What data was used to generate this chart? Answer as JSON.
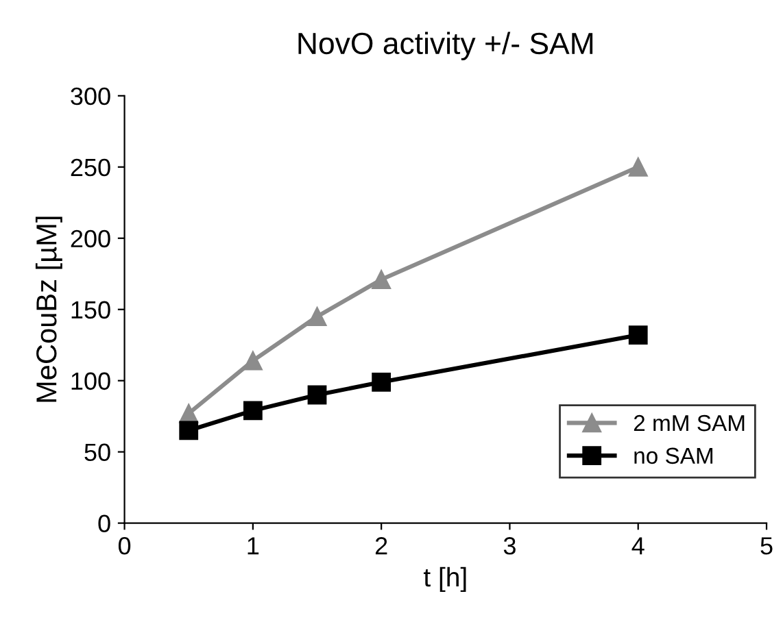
{
  "chart_data": {
    "type": "line",
    "title": "NovO activity +/- SAM",
    "xlabel": "t [h]",
    "ylabel": "MeCouBz [µM]",
    "x": [
      0.5,
      1,
      1.5,
      2,
      4
    ],
    "series": [
      {
        "name": "2 mM SAM",
        "color": "#8c8c8c",
        "marker": "triangle",
        "values": [
          77,
          114,
          145,
          171,
          250
        ]
      },
      {
        "name": "no SAM",
        "color": "#000000",
        "marker": "square",
        "values": [
          65,
          79,
          90,
          99,
          132
        ]
      }
    ],
    "xlim": [
      0,
      5
    ],
    "xticks": [
      0,
      1,
      2,
      3,
      4,
      5
    ],
    "ylim": [
      0,
      300
    ],
    "yticks": [
      0,
      50,
      100,
      150,
      200,
      250,
      300
    ],
    "grid": false,
    "legend": "bottom right",
    "line_style": "solid"
  }
}
